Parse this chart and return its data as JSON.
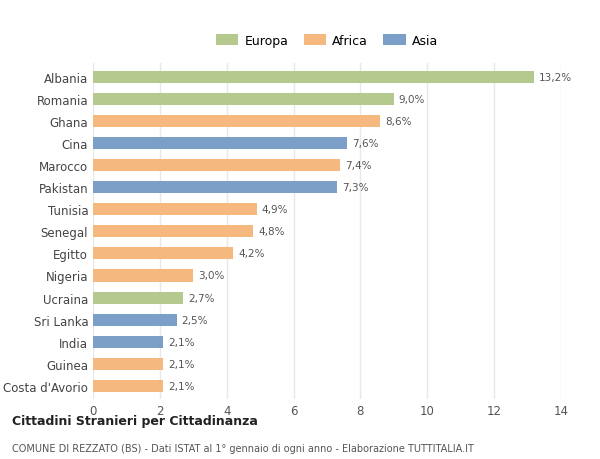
{
  "countries": [
    "Albania",
    "Romania",
    "Ghana",
    "Cina",
    "Marocco",
    "Pakistan",
    "Tunisia",
    "Senegal",
    "Egitto",
    "Nigeria",
    "Ucraina",
    "Sri Lanka",
    "India",
    "Guinea",
    "Costa d'Avorio"
  ],
  "values": [
    13.2,
    9.0,
    8.6,
    7.6,
    7.4,
    7.3,
    4.9,
    4.8,
    4.2,
    3.0,
    2.7,
    2.5,
    2.1,
    2.1,
    2.1
  ],
  "labels": [
    "13,2%",
    "9,0%",
    "8,6%",
    "7,6%",
    "7,4%",
    "7,3%",
    "4,9%",
    "4,8%",
    "4,2%",
    "3,0%",
    "2,7%",
    "2,5%",
    "2,1%",
    "2,1%",
    "2,1%"
  ],
  "continents": [
    "Europa",
    "Europa",
    "Africa",
    "Asia",
    "Africa",
    "Asia",
    "Africa",
    "Africa",
    "Africa",
    "Africa",
    "Europa",
    "Asia",
    "Asia",
    "Africa",
    "Africa"
  ],
  "colors": {
    "Europa": "#b5c98e",
    "Africa": "#f5b97f",
    "Asia": "#7b9fc7"
  },
  "bg_color": "#ffffff",
  "grid_color": "#e8e8e8",
  "title_bold": "Cittadini Stranieri per Cittadinanza",
  "title_sub": "COMUNE DI REZZATO (BS) - Dati ISTAT al 1° gennaio di ogni anno - Elaborazione TUTTITALIA.IT",
  "xlim": [
    0,
    14
  ],
  "xticks": [
    0,
    2,
    4,
    6,
    8,
    10,
    12,
    14
  ]
}
